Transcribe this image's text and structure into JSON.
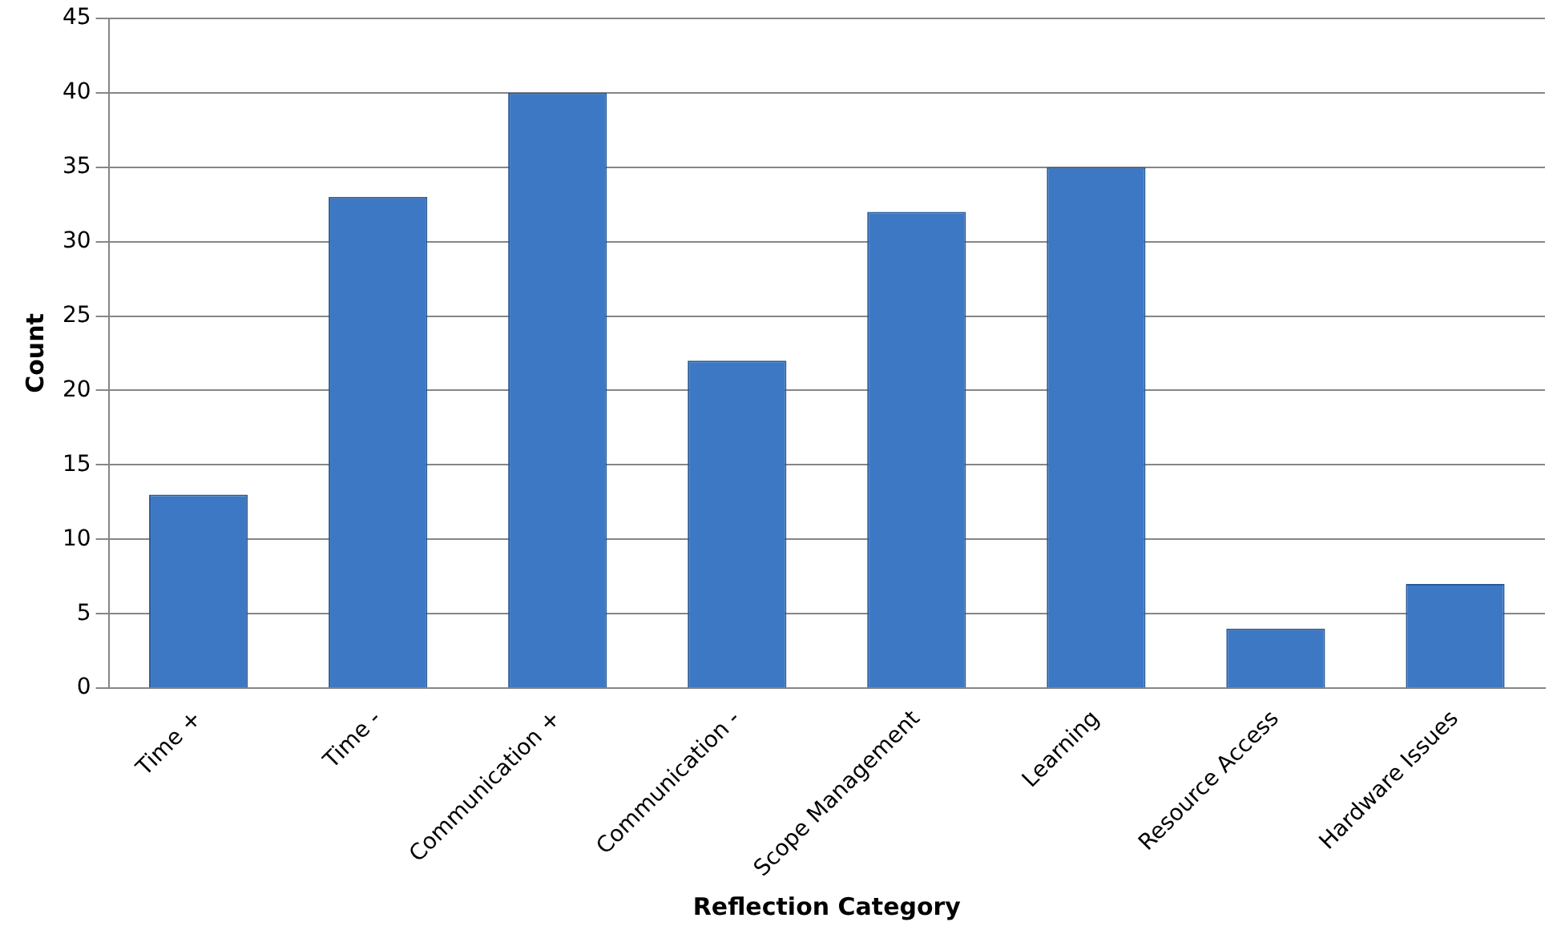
{
  "chart_data": {
    "type": "bar",
    "xlabel": "Reflection Category",
    "ylabel": "Count",
    "categories": [
      "Time +",
      "Time -",
      "Communication +",
      "Communication -",
      "Scope Management",
      "Learning",
      "Resource Access",
      "Hardware Issues"
    ],
    "values": [
      13,
      33,
      40,
      22,
      32,
      35,
      4,
      7
    ],
    "color": "#3d78c4",
    "ylim": [
      0,
      45
    ],
    "yticks": [
      0,
      5,
      10,
      15,
      20,
      25,
      30,
      35,
      40,
      45
    ],
    "grid": "y",
    "legend": false
  }
}
